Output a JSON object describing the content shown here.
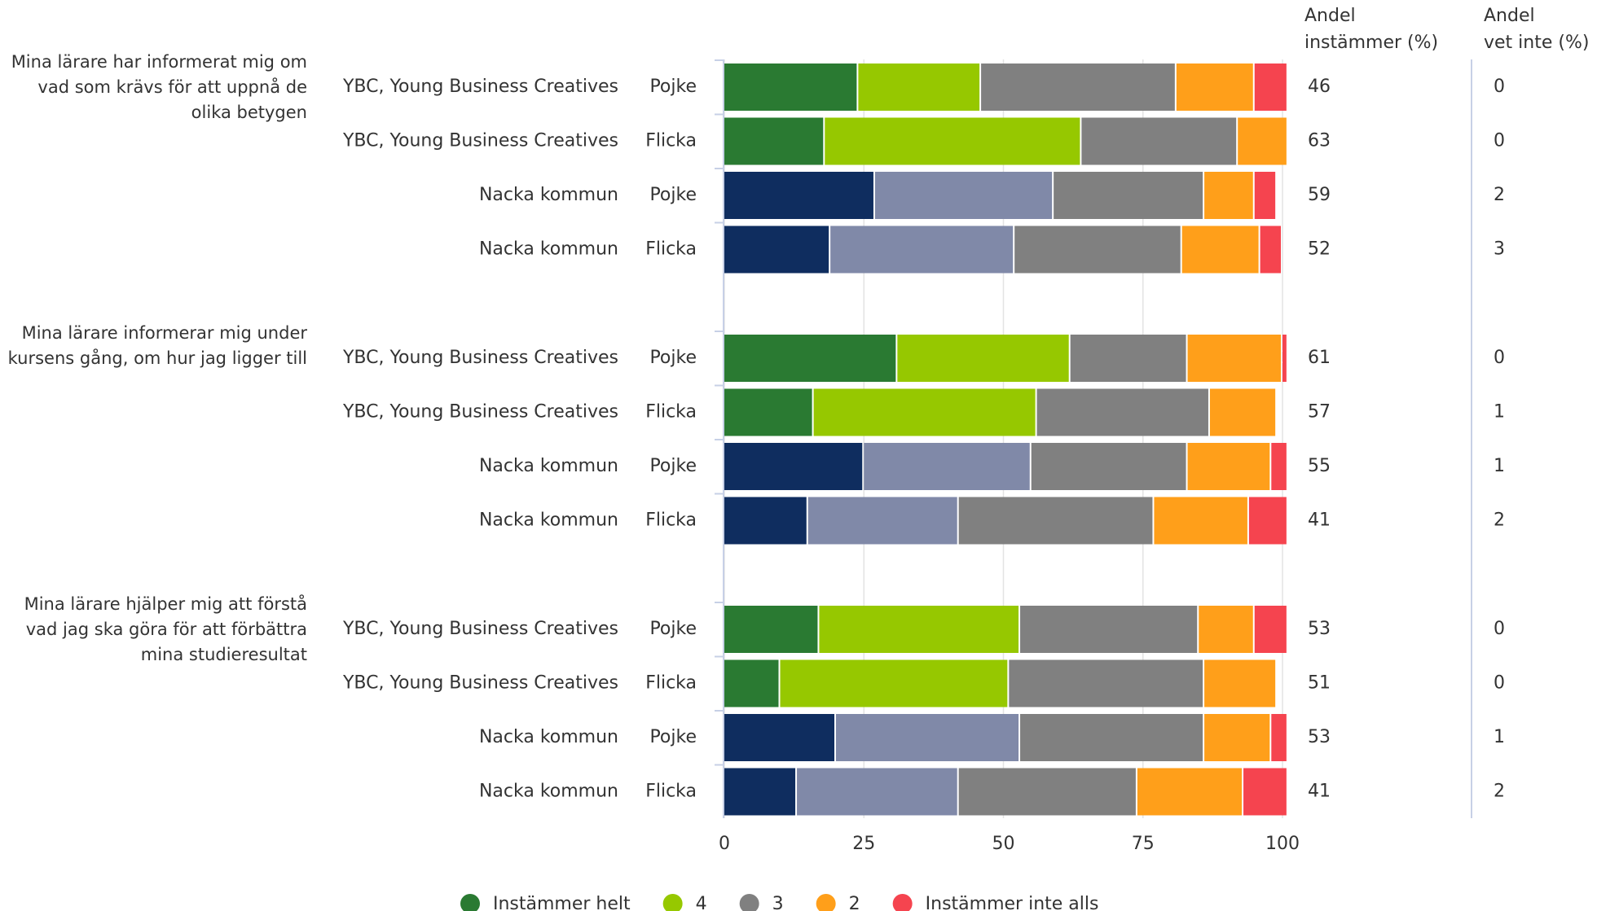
{
  "chart_data": {
    "type": "bar",
    "orientation": "horizontal",
    "stacked": true,
    "groups": [
      {
        "question": "Mina lärare har informerat mig om vad som krävs för att uppnå de olika betygen",
        "schools": [
          "YBC, Young Business Creatives",
          "YBC, Young Business Creatives",
          "Nacka kommun",
          "Nacka kommun"
        ],
        "genders": [
          "Pojke",
          "Flicka",
          "Pojke",
          "Flicka"
        ]
      },
      {
        "question": "Mina lärare informerar mig under kursens gång, om hur jag ligger till",
        "schools": [
          "YBC, Young Business Creatives",
          "YBC, Young Business Creatives",
          "Nacka kommun",
          "Nacka kommun"
        ],
        "genders": [
          "Pojke",
          "Flicka",
          "Pojke",
          "Flicka"
        ]
      },
      {
        "question": "Mina lärare hjälper mig att förstå vad jag ska göra för att förbättra mina studieresultat",
        "schools": [
          "YBC, Young Business Creatives",
          "YBC, Young Business Creatives",
          "Nacka kommun",
          "Nacka kommun"
        ],
        "genders": [
          "Pojke",
          "Flicka",
          "Pojke",
          "Flicka"
        ]
      }
    ],
    "series": [
      {
        "name": "Instämmer helt",
        "color": "#2a7a32",
        "colors": [
          "#2a7a32",
          "#2a7a32",
          "#0f2d5f",
          "#0f2d5f",
          "#2a7a32",
          "#2a7a32",
          "#0f2d5f",
          "#0f2d5f",
          "#2a7a32",
          "#2a7a32",
          "#0f2d5f",
          "#0f2d5f"
        ],
        "values": [
          24,
          18,
          27,
          19,
          31,
          16,
          25,
          15,
          17,
          10,
          20,
          13
        ]
      },
      {
        "name": "4",
        "color": "#96c800",
        "colors": [
          "#96c800",
          "#96c800",
          "#8089a8",
          "#8089a8",
          "#96c800",
          "#96c800",
          "#8089a8",
          "#8089a8",
          "#96c800",
          "#96c800",
          "#8089a8",
          "#8089a8"
        ],
        "values": [
          22,
          46,
          32,
          33,
          31,
          40,
          30,
          27,
          36,
          41,
          33,
          29
        ]
      },
      {
        "name": "3",
        "color": "#808080",
        "colors": [
          "#808080",
          "#808080",
          "#808080",
          "#808080",
          "#808080",
          "#808080",
          "#808080",
          "#808080",
          "#808080",
          "#808080",
          "#808080",
          "#808080"
        ],
        "values": [
          35,
          28,
          27,
          30,
          21,
          31,
          28,
          35,
          32,
          35,
          33,
          32
        ]
      },
      {
        "name": "2",
        "color": "#ff9f1a",
        "colors": [
          "#ff9f1a",
          "#ff9f1a",
          "#ff9f1a",
          "#ff9f1a",
          "#ff9f1a",
          "#ff9f1a",
          "#ff9f1a",
          "#ff9f1a",
          "#ff9f1a",
          "#ff9f1a",
          "#ff9f1a",
          "#ff9f1a"
        ],
        "values": [
          14,
          9,
          9,
          14,
          17,
          12,
          15,
          17,
          10,
          13,
          12,
          19
        ]
      },
      {
        "name": "Instämmer inte alls",
        "color": "#f5444f",
        "colors": [
          "#f5444f",
          "#f5444f",
          "#f5444f",
          "#f5444f",
          "#f5444f",
          "#f5444f",
          "#f5444f",
          "#f5444f",
          "#f5444f",
          "#f5444f",
          "#f5444f",
          "#f5444f"
        ],
        "values": [
          6,
          0,
          4,
          4,
          1,
          0,
          3,
          7,
          6,
          0,
          3,
          8
        ]
      }
    ],
    "columns": [
      {
        "header": [
          "Andel",
          "instämmer (%)"
        ],
        "values": [
          46,
          63,
          59,
          52,
          61,
          57,
          55,
          41,
          53,
          51,
          53,
          41
        ]
      },
      {
        "header": [
          "Andel",
          "vet inte (%)"
        ],
        "values": [
          0,
          0,
          2,
          3,
          0,
          1,
          1,
          2,
          0,
          0,
          1,
          2
        ]
      }
    ],
    "xlim": [
      0,
      100
    ],
    "xticks": [
      0,
      25,
      50,
      75,
      100
    ],
    "grid": true
  }
}
